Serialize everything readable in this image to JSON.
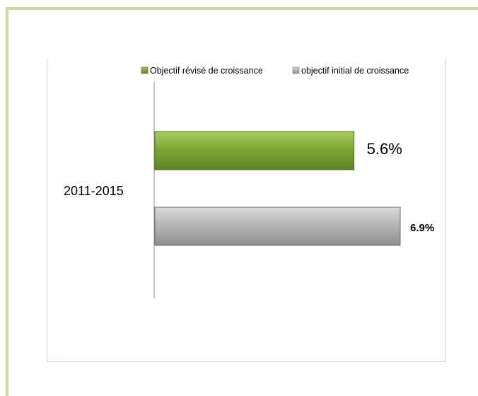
{
  "chart_data": {
    "type": "bar",
    "orientation": "horizontal",
    "categories": [
      "2011-2015"
    ],
    "series": [
      {
        "name": "Objectif révisé de croissance",
        "values": [
          5.6
        ],
        "label": "5.6%",
        "color": "#7aa531"
      },
      {
        "name": "objectif initial de croissance",
        "values": [
          6.9
        ],
        "label": "6.9%",
        "color": "#b3b3b3"
      }
    ],
    "title": "",
    "xlabel": "",
    "ylabel": "",
    "xlim": [
      0,
      6.9
    ],
    "grid": false,
    "legend_position": "top"
  }
}
